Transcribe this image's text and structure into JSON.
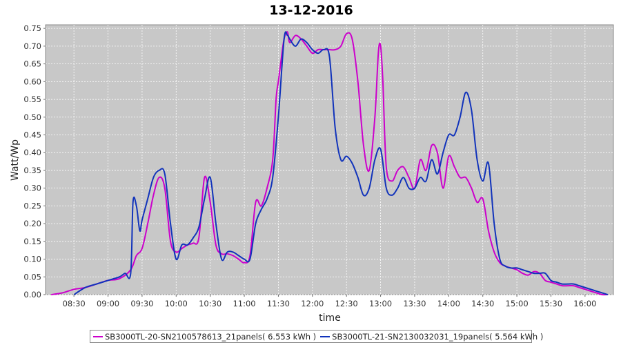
{
  "chart_data": {
    "type": "line",
    "title": "13-12-2016",
    "xlabel": "time",
    "ylabel": "Watt/Wp",
    "xlim": [
      "08:05",
      "16:25"
    ],
    "ylim": [
      0,
      0.76
    ],
    "x_ticks": [
      "08:30",
      "09:00",
      "09:30",
      "10:00",
      "10:30",
      "11:00",
      "11:30",
      "12:00",
      "12:30",
      "13:00",
      "13:30",
      "14:00",
      "14:30",
      "15:00",
      "15:30",
      "16:00"
    ],
    "y_ticks": [
      "0.00",
      "0.05",
      "0.10",
      "0.15",
      "0.20",
      "0.25",
      "0.30",
      "0.35",
      "0.40",
      "0.45",
      "0.50",
      "0.55",
      "0.60",
      "0.65",
      "0.70",
      "0.75"
    ],
    "grid": true,
    "legend_position": "bottom",
    "series": [
      {
        "name": "SB3000TL-20-SN2100578613_21panels( 6.553 kWh )",
        "color": "#cc00cc",
        "x": [
          "08:10",
          "08:20",
          "08:30",
          "08:40",
          "08:50",
          "09:00",
          "09:10",
          "09:20",
          "09:25",
          "09:30",
          "09:35",
          "09:40",
          "09:45",
          "09:50",
          "09:55",
          "10:00",
          "10:05",
          "10:10",
          "10:15",
          "10:20",
          "10:25",
          "10:30",
          "10:35",
          "10:40",
          "10:45",
          "10:50",
          "10:55",
          "11:00",
          "11:05",
          "11:10",
          "11:15",
          "11:20",
          "11:25",
          "11:28",
          "11:30",
          "11:32",
          "11:35",
          "11:38",
          "11:40",
          "11:45",
          "11:50",
          "11:55",
          "12:00",
          "12:05",
          "12:10",
          "12:15",
          "12:20",
          "12:25",
          "12:30",
          "12:35",
          "12:40",
          "12:45",
          "12:50",
          "12:55",
          "12:58",
          "13:00",
          "13:02",
          "13:05",
          "13:10",
          "13:15",
          "13:20",
          "13:25",
          "13:30",
          "13:35",
          "13:40",
          "13:45",
          "13:50",
          "13:55",
          "14:00",
          "14:05",
          "14:10",
          "14:15",
          "14:20",
          "14:25",
          "14:30",
          "14:35",
          "14:40",
          "14:45",
          "14:50",
          "14:55",
          "15:00",
          "15:05",
          "15:10",
          "15:15",
          "15:20",
          "15:25",
          "15:30",
          "15:35",
          "15:40",
          "15:45",
          "15:50",
          "15:55",
          "16:00",
          "16:05",
          "16:10",
          "16:15",
          "16:20"
        ],
        "values": [
          0.0,
          0.005,
          0.015,
          0.02,
          0.03,
          0.04,
          0.045,
          0.07,
          0.11,
          0.13,
          0.2,
          0.28,
          0.33,
          0.3,
          0.15,
          0.12,
          0.13,
          0.14,
          0.145,
          0.16,
          0.33,
          0.26,
          0.14,
          0.115,
          0.115,
          0.11,
          0.1,
          0.09,
          0.11,
          0.26,
          0.25,
          0.3,
          0.38,
          0.55,
          0.6,
          0.65,
          0.72,
          0.74,
          0.71,
          0.73,
          0.72,
          0.7,
          0.68,
          0.69,
          0.69,
          0.69,
          0.69,
          0.7,
          0.735,
          0.72,
          0.6,
          0.42,
          0.35,
          0.5,
          0.68,
          0.7,
          0.6,
          0.36,
          0.32,
          0.35,
          0.36,
          0.33,
          0.3,
          0.38,
          0.35,
          0.42,
          0.4,
          0.3,
          0.39,
          0.36,
          0.33,
          0.33,
          0.3,
          0.26,
          0.27,
          0.18,
          0.12,
          0.09,
          0.08,
          0.075,
          0.07,
          0.06,
          0.055,
          0.065,
          0.06,
          0.04,
          0.035,
          0.03,
          0.025,
          0.025,
          0.025,
          0.02,
          0.015,
          0.01,
          0.005,
          0.0,
          0.0
        ]
      },
      {
        "name": "SB3000TL-21-SN2130032031_19panels( 5.564 kWh )",
        "color": "#1133bb",
        "x": [
          "08:30",
          "08:40",
          "08:50",
          "09:00",
          "09:10",
          "09:15",
          "09:20",
          "09:22",
          "09:25",
          "09:28",
          "09:30",
          "09:35",
          "09:40",
          "09:45",
          "09:50",
          "09:55",
          "10:00",
          "10:05",
          "10:10",
          "10:15",
          "10:20",
          "10:25",
          "10:30",
          "10:35",
          "10:40",
          "10:45",
          "10:50",
          "10:55",
          "11:00",
          "11:05",
          "11:10",
          "11:15",
          "11:20",
          "11:25",
          "11:30",
          "11:35",
          "11:38",
          "11:40",
          "11:45",
          "11:50",
          "11:55",
          "12:00",
          "12:05",
          "12:10",
          "12:15",
          "12:20",
          "12:25",
          "12:30",
          "12:35",
          "12:40",
          "12:45",
          "12:50",
          "12:55",
          "13:00",
          "13:05",
          "13:10",
          "13:15",
          "13:20",
          "13:25",
          "13:30",
          "13:35",
          "13:40",
          "13:45",
          "13:50",
          "13:55",
          "14:00",
          "14:05",
          "14:10",
          "14:15",
          "14:20",
          "14:25",
          "14:30",
          "14:35",
          "14:40",
          "14:45",
          "14:50",
          "14:55",
          "15:00",
          "15:05",
          "15:10",
          "15:15",
          "15:20",
          "15:25",
          "15:30",
          "15:35",
          "15:40",
          "15:45",
          "15:50",
          "15:55",
          "16:00",
          "16:05",
          "16:10",
          "16:15",
          "16:20"
        ],
        "values": [
          0.0,
          0.02,
          0.03,
          0.04,
          0.05,
          0.06,
          0.06,
          0.26,
          0.25,
          0.18,
          0.21,
          0.27,
          0.33,
          0.35,
          0.34,
          0.2,
          0.1,
          0.14,
          0.14,
          0.16,
          0.19,
          0.27,
          0.33,
          0.2,
          0.1,
          0.12,
          0.12,
          0.11,
          0.1,
          0.1,
          0.2,
          0.24,
          0.27,
          0.33,
          0.5,
          0.72,
          0.73,
          0.72,
          0.7,
          0.72,
          0.71,
          0.69,
          0.68,
          0.69,
          0.67,
          0.47,
          0.38,
          0.39,
          0.37,
          0.33,
          0.28,
          0.3,
          0.38,
          0.41,
          0.3,
          0.28,
          0.3,
          0.33,
          0.3,
          0.3,
          0.33,
          0.32,
          0.38,
          0.34,
          0.4,
          0.45,
          0.45,
          0.5,
          0.57,
          0.52,
          0.38,
          0.32,
          0.37,
          0.2,
          0.1,
          0.08,
          0.075,
          0.075,
          0.07,
          0.065,
          0.06,
          0.06,
          0.06,
          0.04,
          0.035,
          0.03,
          0.03,
          0.03,
          0.025,
          0.02,
          0.015,
          0.01,
          0.005,
          0.0
        ]
      }
    ]
  }
}
